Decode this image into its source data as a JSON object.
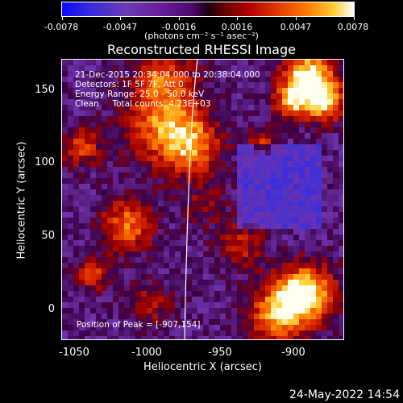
{
  "colorbar": {
    "ticks": [
      "-0.0078",
      "-0.0047",
      "-0.0016",
      "0.0016",
      "0.0047",
      "0.0078"
    ],
    "units_label": "(photons cm⁻² s⁻¹ asec⁻²)"
  },
  "plot": {
    "title": "Reconstructed RHESSI Image",
    "xlabel": "Heliocentric X (arcsec)",
    "ylabel": "Heliocentric Y (arcsec)",
    "x_ticks": [
      "-1050",
      "-1000",
      "-950",
      "-900"
    ],
    "y_ticks": [
      "150",
      "100",
      "50",
      "0"
    ],
    "info": {
      "time": "21-Dec-2015 20:34:04.000 to 20:38:04.000",
      "detectors": "Detectors: 1F 5F 7F, Att 0",
      "energy": "Energy Range: 25.0 - 50.0 keV",
      "method": "Clean     Total counts: 4.23E+03"
    },
    "peak": "Position of Peak = [-907,154]"
  },
  "footer": {
    "date": "24-May-2022 14:54"
  },
  "colors": {
    "background": "#000000",
    "foreground": "#ffffff"
  }
}
